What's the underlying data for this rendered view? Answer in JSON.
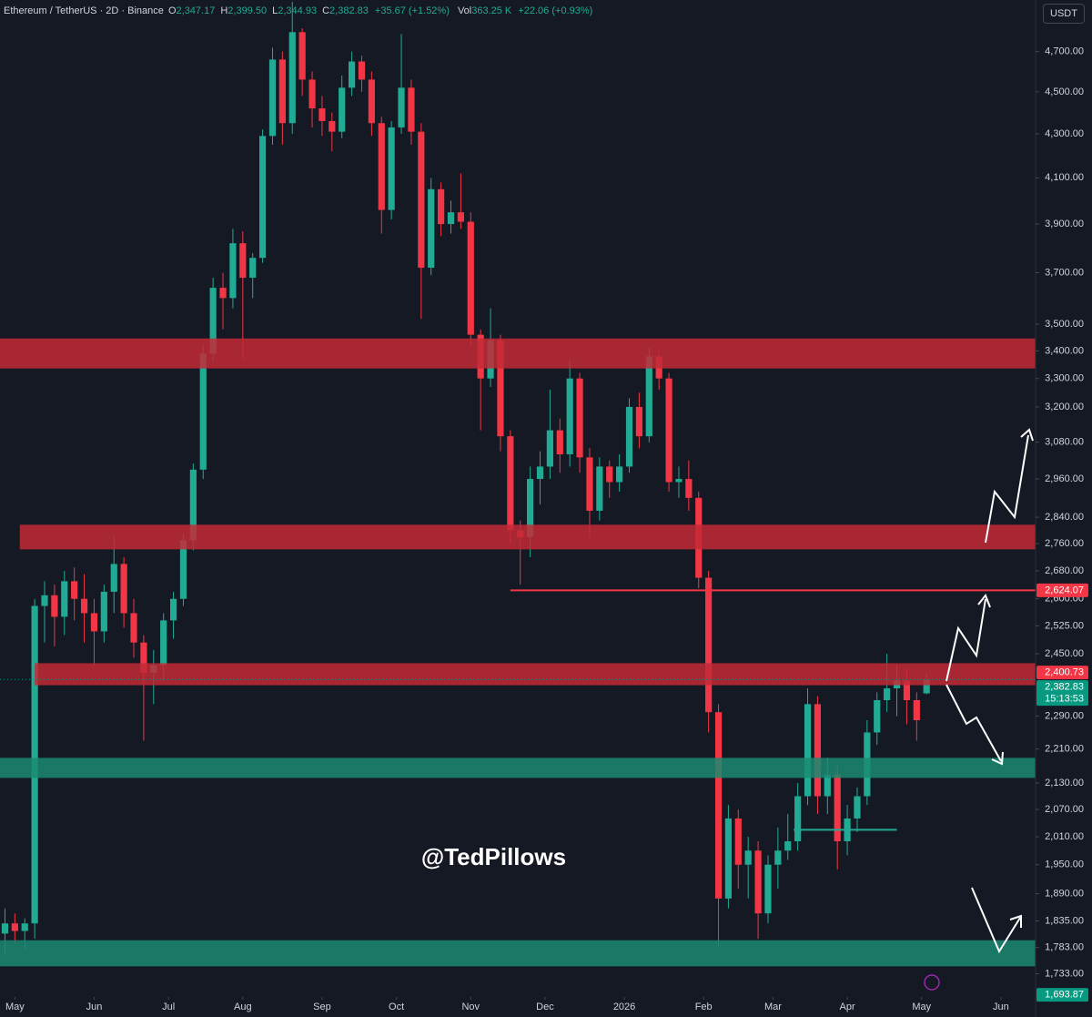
{
  "header": {
    "symbol": "Ethereum / TetherUS · 2D · Binance",
    "ohlc": [
      {
        "label": "O",
        "value": "2,347.17"
      },
      {
        "label": "H",
        "value": "2,399.50"
      },
      {
        "label": "L",
        "value": "2,344.93"
      },
      {
        "label": "C",
        "value": "2,382.83"
      }
    ],
    "change": "+35.67 (+1.52%)",
    "volume_label": "Vol",
    "volume": "363.25 K",
    "volume_change": "+22.06 (+0.93%)",
    "currency": "USDT"
  },
  "watermark": "@TedPillows",
  "chart_data": {
    "type": "candlestick",
    "log_scale": true,
    "grid": false,
    "up_color": "#22ab94",
    "down_color": "#f23645",
    "xlim": [
      -0.5,
      104
    ],
    "xticks": [
      {
        "value": 1,
        "label": "May"
      },
      {
        "value": 9,
        "label": "Jun"
      },
      {
        "value": 16.5,
        "label": "Jul"
      },
      {
        "value": 24,
        "label": "Aug"
      },
      {
        "value": 32,
        "label": "Sep"
      },
      {
        "value": 39.5,
        "label": "Oct"
      },
      {
        "value": 47,
        "label": "Nov"
      },
      {
        "value": 54.5,
        "label": "Dec"
      },
      {
        "value": 62.5,
        "label": "2026"
      },
      {
        "value": 70.5,
        "label": "Feb"
      },
      {
        "value": 77.5,
        "label": "Mar"
      },
      {
        "value": 85,
        "label": "Apr"
      },
      {
        "value": 92.5,
        "label": "May"
      },
      {
        "value": 100.5,
        "label": "Jun"
      }
    ],
    "ylim": [
      1690,
      4970
    ],
    "yticks": [
      {
        "value": 4700,
        "label": "4,700.00"
      },
      {
        "value": 4500,
        "label": "4,500.00"
      },
      {
        "value": 4300,
        "label": "4,300.00"
      },
      {
        "value": 4100,
        "label": "4,100.00"
      },
      {
        "value": 3900,
        "label": "3,900.00"
      },
      {
        "value": 3700,
        "label": "3,700.00"
      },
      {
        "value": 3500,
        "label": "3,500.00"
      },
      {
        "value": 3400,
        "label": "3,400.00"
      },
      {
        "value": 3300,
        "label": "3,300.00"
      },
      {
        "value": 3200,
        "label": "3,200.00"
      },
      {
        "value": 3080,
        "label": "3,080.00"
      },
      {
        "value": 2960,
        "label": "2,960.00"
      },
      {
        "value": 2840,
        "label": "2,840.00"
      },
      {
        "value": 2760,
        "label": "2,760.00"
      },
      {
        "value": 2680,
        "label": "2,680.00"
      },
      {
        "value": 2600,
        "label": "2,600.00"
      },
      {
        "value": 2525,
        "label": "2,525.00"
      },
      {
        "value": 2450,
        "label": "2,450.00"
      },
      {
        "value": 2290,
        "label": "2,290.00"
      },
      {
        "value": 2210,
        "label": "2,210.00"
      },
      {
        "value": 2130,
        "label": "2,130.00"
      },
      {
        "value": 2070,
        "label": "2,070.00"
      },
      {
        "value": 2010,
        "label": "2,010.00"
      },
      {
        "value": 1950,
        "label": "1,950.00"
      },
      {
        "value": 1890,
        "label": "1,890.00"
      },
      {
        "value": 1835,
        "label": "1,835.00"
      },
      {
        "value": 1783,
        "label": "1,783.00"
      },
      {
        "value": 1733,
        "label": "1,733.00"
      }
    ],
    "candles": [
      [
        1810,
        1860,
        1770,
        1830
      ],
      [
        1830,
        1850,
        1790,
        1815
      ],
      [
        1815,
        1840,
        1780,
        1830
      ],
      [
        1830,
        2600,
        1800,
        2580
      ],
      [
        2580,
        2650,
        2480,
        2610
      ],
      [
        2610,
        2640,
        2470,
        2550
      ],
      [
        2550,
        2680,
        2500,
        2650
      ],
      [
        2650,
        2690,
        2540,
        2600
      ],
      [
        2600,
        2670,
        2480,
        2560
      ],
      [
        2560,
        2600,
        2420,
        2510
      ],
      [
        2510,
        2640,
        2480,
        2620
      ],
      [
        2620,
        2780,
        2560,
        2700
      ],
      [
        2700,
        2720,
        2520,
        2560
      ],
      [
        2560,
        2600,
        2440,
        2480
      ],
      [
        2480,
        2500,
        2230,
        2400
      ],
      [
        2400,
        2460,
        2320,
        2420
      ],
      [
        2420,
        2560,
        2380,
        2540
      ],
      [
        2540,
        2620,
        2490,
        2600
      ],
      [
        2600,
        2790,
        2580,
        2770
      ],
      [
        2770,
        3010,
        2740,
        2990
      ],
      [
        2990,
        3420,
        2960,
        3390
      ],
      [
        3390,
        3680,
        3360,
        3640
      ],
      [
        3640,
        3700,
        3480,
        3600
      ],
      [
        3600,
        3880,
        3560,
        3820
      ],
      [
        3820,
        3870,
        3370,
        3680
      ],
      [
        3680,
        3780,
        3600,
        3760
      ],
      [
        3760,
        4320,
        3740,
        4290
      ],
      [
        4290,
        4720,
        4250,
        4660
      ],
      [
        4660,
        4700,
        4250,
        4350
      ],
      [
        4350,
        4960,
        4300,
        4800
      ],
      [
        4800,
        4820,
        4480,
        4560
      ],
      [
        4560,
        4600,
        4330,
        4420
      ],
      [
        4420,
        4480,
        4290,
        4360
      ],
      [
        4360,
        4400,
        4220,
        4310
      ],
      [
        4310,
        4580,
        4280,
        4520
      ],
      [
        4520,
        4700,
        4480,
        4650
      ],
      [
        4650,
        4680,
        4500,
        4560
      ],
      [
        4560,
        4600,
        4290,
        4350
      ],
      [
        4350,
        4380,
        3860,
        3960
      ],
      [
        3960,
        4360,
        3920,
        4330
      ],
      [
        4330,
        4790,
        4300,
        4520
      ],
      [
        4520,
        4560,
        4250,
        4310
      ],
      [
        4310,
        4350,
        3520,
        3720
      ],
      [
        3720,
        4100,
        3690,
        4050
      ],
      [
        4050,
        4080,
        3850,
        3900
      ],
      [
        3900,
        4000,
        3860,
        3950
      ],
      [
        3950,
        4120,
        3880,
        3910
      ],
      [
        3910,
        3950,
        3420,
        3460
      ],
      [
        3460,
        3480,
        3120,
        3300
      ],
      [
        3300,
        3560,
        3270,
        3440
      ],
      [
        3440,
        3460,
        3050,
        3100
      ],
      [
        3100,
        3120,
        2760,
        2800
      ],
      [
        2800,
        2830,
        2640,
        2780
      ],
      [
        2780,
        3000,
        2720,
        2960
      ],
      [
        2960,
        3050,
        2880,
        3000
      ],
      [
        3000,
        3260,
        2960,
        3120
      ],
      [
        3120,
        3160,
        2980,
        3040
      ],
      [
        3040,
        3370,
        3000,
        3300
      ],
      [
        3300,
        3320,
        2980,
        3030
      ],
      [
        3030,
        3060,
        2780,
        2860
      ],
      [
        2860,
        3030,
        2830,
        3000
      ],
      [
        3000,
        3020,
        2900,
        2950
      ],
      [
        2950,
        3040,
        2920,
        3000
      ],
      [
        3000,
        3230,
        2980,
        3200
      ],
      [
        3200,
        3250,
        3060,
        3100
      ],
      [
        3100,
        3410,
        3080,
        3380
      ],
      [
        3380,
        3400,
        3260,
        3300
      ],
      [
        3300,
        3320,
        2920,
        2950
      ],
      [
        2950,
        3000,
        2900,
        2960
      ],
      [
        2960,
        3020,
        2860,
        2900
      ],
      [
        2900,
        2920,
        2630,
        2660
      ],
      [
        2660,
        2680,
        2250,
        2300
      ],
      [
        2300,
        2320,
        1785,
        1880
      ],
      [
        1880,
        2080,
        1860,
        2050
      ],
      [
        2050,
        2070,
        1900,
        1950
      ],
      [
        1950,
        2010,
        1880,
        1980
      ],
      [
        1980,
        2000,
        1800,
        1850
      ],
      [
        1850,
        1970,
        1830,
        1950
      ],
      [
        1950,
        2030,
        1900,
        1980
      ],
      [
        1980,
        2060,
        1960,
        2000
      ],
      [
        2000,
        2130,
        1980,
        2100
      ],
      [
        2100,
        2360,
        2080,
        2320
      ],
      [
        2320,
        2340,
        2060,
        2100
      ],
      [
        2100,
        2190,
        2060,
        2150
      ],
      [
        2150,
        2170,
        1940,
        2000
      ],
      [
        2000,
        2080,
        1970,
        2050
      ],
      [
        2050,
        2120,
        2020,
        2100
      ],
      [
        2100,
        2280,
        2080,
        2250
      ],
      [
        2250,
        2350,
        2220,
        2330
      ],
      [
        2330,
        2450,
        2300,
        2360
      ],
      [
        2360,
        2420,
        2290,
        2380
      ],
      [
        2380,
        2410,
        2270,
        2330
      ],
      [
        2330,
        2350,
        2230,
        2280
      ],
      [
        2347.17,
        2399.5,
        2344.93,
        2382.83
      ]
    ],
    "zones": [
      {
        "low": 3336,
        "high": 3446,
        "start": -0.5,
        "color": "#c22a36"
      },
      {
        "low": 2743,
        "high": 2817,
        "start": 1.5,
        "color": "#c22a36"
      },
      {
        "low": 2368,
        "high": 2425,
        "start": 3,
        "color": "#c22a36"
      },
      {
        "low": 2142,
        "high": 2189,
        "start": -0.5,
        "color": "#1b8a72"
      },
      {
        "low": 1747,
        "high": 1797,
        "start": -0.5,
        "color": "#1b8a72"
      }
    ],
    "levels": [
      {
        "value": 2624.07,
        "start": 51,
        "end": 104,
        "color": "#f23645"
      },
      {
        "value": 2025,
        "start": 79.6,
        "end": 90,
        "color": "#22ab94"
      }
    ],
    "price_labels": [
      {
        "value": 2624.07,
        "label": "2,624.07",
        "color": "#f23645"
      },
      {
        "value": 2400.73,
        "label": "2,400.73",
        "color": "#f23645"
      },
      {
        "value": 2382.83,
        "label": "2,382.83",
        "sub": "15:13:53",
        "color": "#089981"
      },
      {
        "value": 1693.87,
        "label": "1,693.87",
        "color": "#089981"
      }
    ]
  }
}
